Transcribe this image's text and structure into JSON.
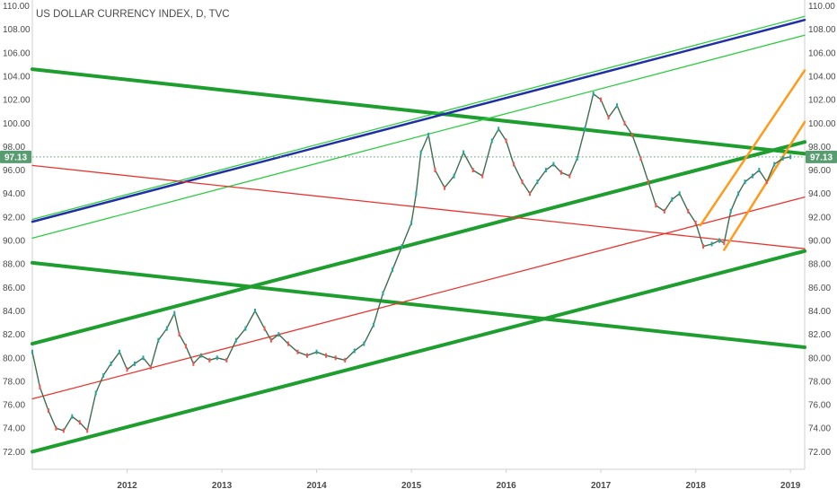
{
  "chart_data": {
    "type": "line",
    "title": "US DOLLAR CURRENCY INDEX, D, TVC",
    "subtitle": "",
    "xlabel": "",
    "ylabel": "",
    "xlim": [
      2011.0,
      2019.15
    ],
    "ylim": [
      70.5,
      110.5
    ],
    "grid": false,
    "y_axis_side": "both",
    "x_ticks": [
      "2012",
      "2013",
      "2014",
      "2015",
      "2016",
      "2017",
      "2018",
      "2019"
    ],
    "y_ticks": [
      "72.00",
      "74.00",
      "76.00",
      "78.00",
      "80.00",
      "82.00",
      "84.00",
      "86.00",
      "88.00",
      "90.00",
      "92.00",
      "94.00",
      "96.00",
      "98.00",
      "100.00",
      "102.00",
      "104.00",
      "106.00",
      "108.00",
      "110.00"
    ],
    "last_price": "97.13",
    "last_value": 97.13,
    "colors": {
      "price_up": "#26a69a",
      "price_down": "#ef5350",
      "price_line": "#3d6e4f",
      "channel_green": "#1e9e2e",
      "thin_green": "#2ecc40",
      "blue_line": "#1f2fa8",
      "red_line": "#e8362f",
      "orange_line": "#ff9a1a",
      "axis_text": "#4a4a4a",
      "price_label_bg": "#5a9c72"
    },
    "series": [
      {
        "x": [
          2011.0,
          2011.08,
          2011.17,
          2011.25,
          2011.33,
          2011.42,
          2011.5,
          2011.58,
          2011.67,
          2011.75,
          2011.83,
          2011.92,
          2012.0,
          2012.08,
          2012.17,
          2012.25,
          2012.33,
          2012.42,
          2012.5,
          2012.55,
          2012.62,
          2012.7,
          2012.78,
          2012.87,
          2012.95,
          2013.05,
          2013.15,
          2013.25,
          2013.35,
          2013.45,
          2013.52,
          2013.6,
          2013.7,
          2013.8,
          2013.9,
          2014.0,
          2014.1,
          2014.2,
          2014.3,
          2014.4,
          2014.5,
          2014.6,
          2014.7,
          2014.8,
          2014.9,
          2015.0,
          2015.05,
          2015.1,
          2015.18,
          2015.25,
          2015.35,
          2015.45,
          2015.55,
          2015.65,
          2015.75,
          2015.85,
          2015.92,
          2016.0,
          2016.08,
          2016.17,
          2016.25,
          2016.33,
          2016.42,
          2016.5,
          2016.58,
          2016.67,
          2016.75,
          2016.83,
          2016.92,
          2017.0,
          2017.08,
          2017.17,
          2017.25,
          2017.33,
          2017.42,
          2017.5,
          2017.58,
          2017.67,
          2017.75,
          2017.83,
          2017.92,
          2018.0,
          2018.08,
          2018.17,
          2018.25,
          2018.3,
          2018.37,
          2018.45,
          2018.52,
          2018.6,
          2018.67,
          2018.75,
          2018.83,
          2018.92,
          2019.0
        ],
        "values": [
          80.5,
          77.5,
          75.5,
          74.0,
          73.8,
          75.0,
          74.5,
          73.8,
          77.0,
          78.5,
          79.5,
          80.5,
          79.0,
          79.5,
          80.0,
          79.2,
          81.5,
          82.5,
          83.8,
          82.0,
          81.0,
          79.5,
          80.2,
          79.8,
          80.0,
          79.8,
          81.5,
          82.5,
          84.0,
          82.5,
          81.5,
          82.0,
          81.2,
          80.5,
          80.2,
          80.5,
          80.2,
          80.0,
          79.8,
          80.6,
          81.2,
          82.8,
          85.5,
          87.5,
          89.5,
          91.5,
          94.0,
          97.5,
          99.0,
          96.0,
          94.5,
          95.5,
          97.5,
          96.0,
          95.5,
          98.5,
          99.5,
          98.5,
          96.5,
          95.0,
          94.0,
          95.0,
          96.0,
          96.5,
          95.8,
          95.5,
          97.0,
          99.5,
          102.5,
          102.0,
          100.5,
          101.5,
          100.0,
          99.0,
          97.0,
          95.0,
          93.0,
          92.5,
          93.5,
          94.0,
          92.5,
          91.5,
          89.5,
          89.7,
          90.0,
          89.8,
          92.5,
          94.0,
          95.0,
          95.5,
          96.0,
          95.0,
          96.5,
          97.0,
          97.13
        ]
      }
    ],
    "trendlines": [
      {
        "color": "channel_green",
        "width": "thick",
        "x1": 2011.0,
        "y1": 104.6,
        "x2": 2019.15,
        "y2": 97.4
      },
      {
        "color": "channel_green",
        "width": "thick",
        "x1": 2011.0,
        "y1": 81.2,
        "x2": 2019.15,
        "y2": 98.4
      },
      {
        "color": "channel_green",
        "width": "thick",
        "x1": 2011.0,
        "y1": 72.0,
        "x2": 2019.15,
        "y2": 89.1
      },
      {
        "color": "channel_green",
        "width": "thick",
        "x1": 2011.0,
        "y1": 88.1,
        "x2": 2019.15,
        "y2": 80.9
      },
      {
        "color": "thin_green",
        "width": "thin",
        "x1": 2011.0,
        "y1": 91.8,
        "x2": 2019.15,
        "y2": 109.1
      },
      {
        "color": "thin_green",
        "width": "thin",
        "x1": 2011.0,
        "y1": 90.2,
        "x2": 2019.15,
        "y2": 107.5
      },
      {
        "color": "blue_line",
        "width": "medium",
        "x1": 2011.0,
        "y1": 91.6,
        "x2": 2019.15,
        "y2": 108.8
      },
      {
        "color": "red_line",
        "width": "thin",
        "x1": 2011.0,
        "y1": 96.4,
        "x2": 2019.15,
        "y2": 89.3
      },
      {
        "color": "red_line",
        "width": "thin",
        "x1": 2011.0,
        "y1": 76.5,
        "x2": 2019.15,
        "y2": 93.7
      },
      {
        "color": "orange_line",
        "width": "medium",
        "x1": 2018.05,
        "y1": 91.3,
        "x2": 2019.15,
        "y2": 104.5
      },
      {
        "color": "orange_line",
        "width": "medium",
        "x1": 2018.3,
        "y1": 89.2,
        "x2": 2019.15,
        "y2": 100.1
      }
    ]
  }
}
